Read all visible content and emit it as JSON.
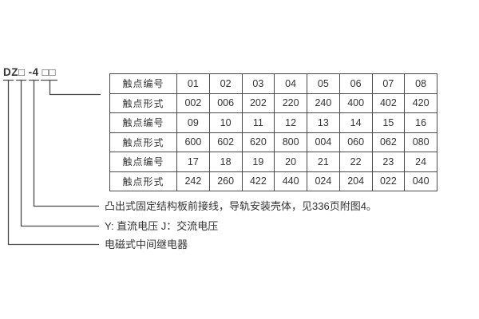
{
  "model_code": {
    "parts": [
      "DZ□",
      "-4",
      "□□"
    ]
  },
  "table": {
    "rows": [
      {
        "label": "触点编号",
        "values": [
          "01",
          "02",
          "03",
          "04",
          "05",
          "06",
          "07",
          "08"
        ]
      },
      {
        "label": "触点形式",
        "values": [
          "002",
          "006",
          "202",
          "220",
          "240",
          "400",
          "402",
          "420"
        ]
      },
      {
        "label": "触点编号",
        "values": [
          "09",
          "10",
          "11",
          "12",
          "13",
          "14",
          "15",
          "16"
        ]
      },
      {
        "label": "触点形式",
        "values": [
          "600",
          "602",
          "620",
          "800",
          "004",
          "060",
          "062",
          "080"
        ]
      },
      {
        "label": "触点编号",
        "values": [
          "17",
          "18",
          "19",
          "20",
          "21",
          "22",
          "23",
          "24"
        ]
      },
      {
        "label": "触点形式",
        "values": [
          "242",
          "260",
          "422",
          "440",
          "024",
          "204",
          "022",
          "040"
        ]
      }
    ]
  },
  "notes": [
    {
      "text": "凸出式固定结构板前接线，导轨安装壳体，见336页附图4。"
    },
    {
      "text": "Y: 直流电压  J：交流电压"
    },
    {
      "text": "电磁式中间继电器"
    }
  ],
  "colors": {
    "ink": "#333333",
    "line": "#4a4a4a",
    "background": "#ffffff"
  }
}
